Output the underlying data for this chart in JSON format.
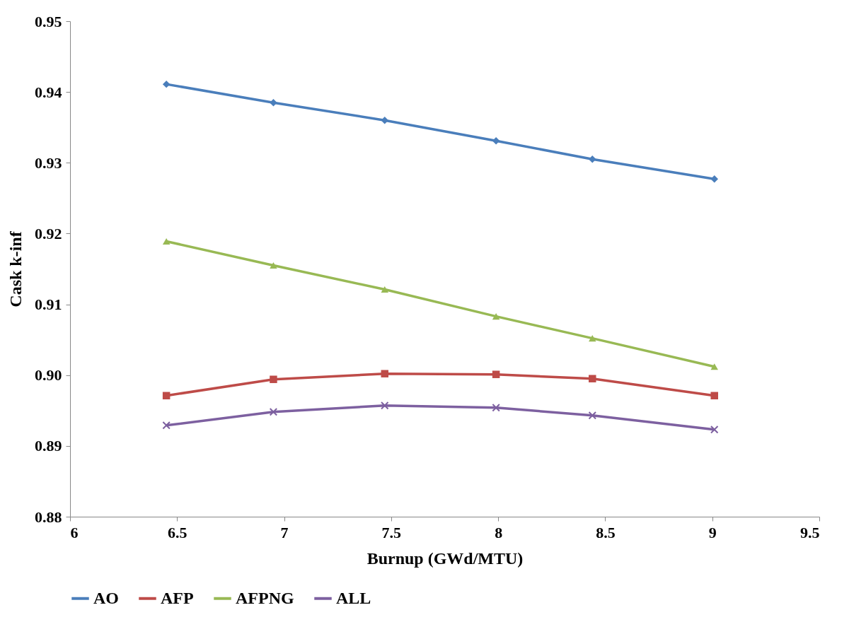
{
  "chart_data": {
    "type": "line",
    "xlabel": "Burnup (GWd/MTU)",
    "ylabel": "Cask k-inf",
    "x": [
      6.45,
      6.95,
      7.47,
      7.99,
      8.44,
      9.01
    ],
    "series": [
      {
        "name": "AO",
        "color": "#4a7ebb",
        "marker": "diamond",
        "values": [
          0.9411,
          0.9385,
          0.936,
          0.9331,
          0.9305,
          0.9277
        ]
      },
      {
        "name": "AFP",
        "color": "#be4b48",
        "marker": "square",
        "values": [
          0.8971,
          0.8994,
          0.9002,
          0.9001,
          0.8995,
          0.8971
        ]
      },
      {
        "name": "AFPNG",
        "color": "#98b954",
        "marker": "triangle",
        "values": [
          0.9189,
          0.9155,
          0.9121,
          0.9083,
          0.9052,
          0.9012
        ]
      },
      {
        "name": "ALL",
        "color": "#7d60a0",
        "marker": "cross",
        "values": [
          0.8929,
          0.8948,
          0.8957,
          0.8954,
          0.8943,
          0.8923
        ]
      }
    ],
    "xlim": [
      6,
      9.5
    ],
    "xticks": [
      6,
      6.5,
      7,
      7.5,
      8,
      8.5,
      9,
      9.5
    ],
    "ylim": [
      0.88,
      0.95
    ],
    "yticks": [
      0.88,
      0.89,
      {
        "value": 0.9,
        "label": "0.90"
      },
      0.91,
      0.92,
      0.93,
      0.94,
      0.95
    ],
    "grid": false,
    "legend": "bottom"
  }
}
